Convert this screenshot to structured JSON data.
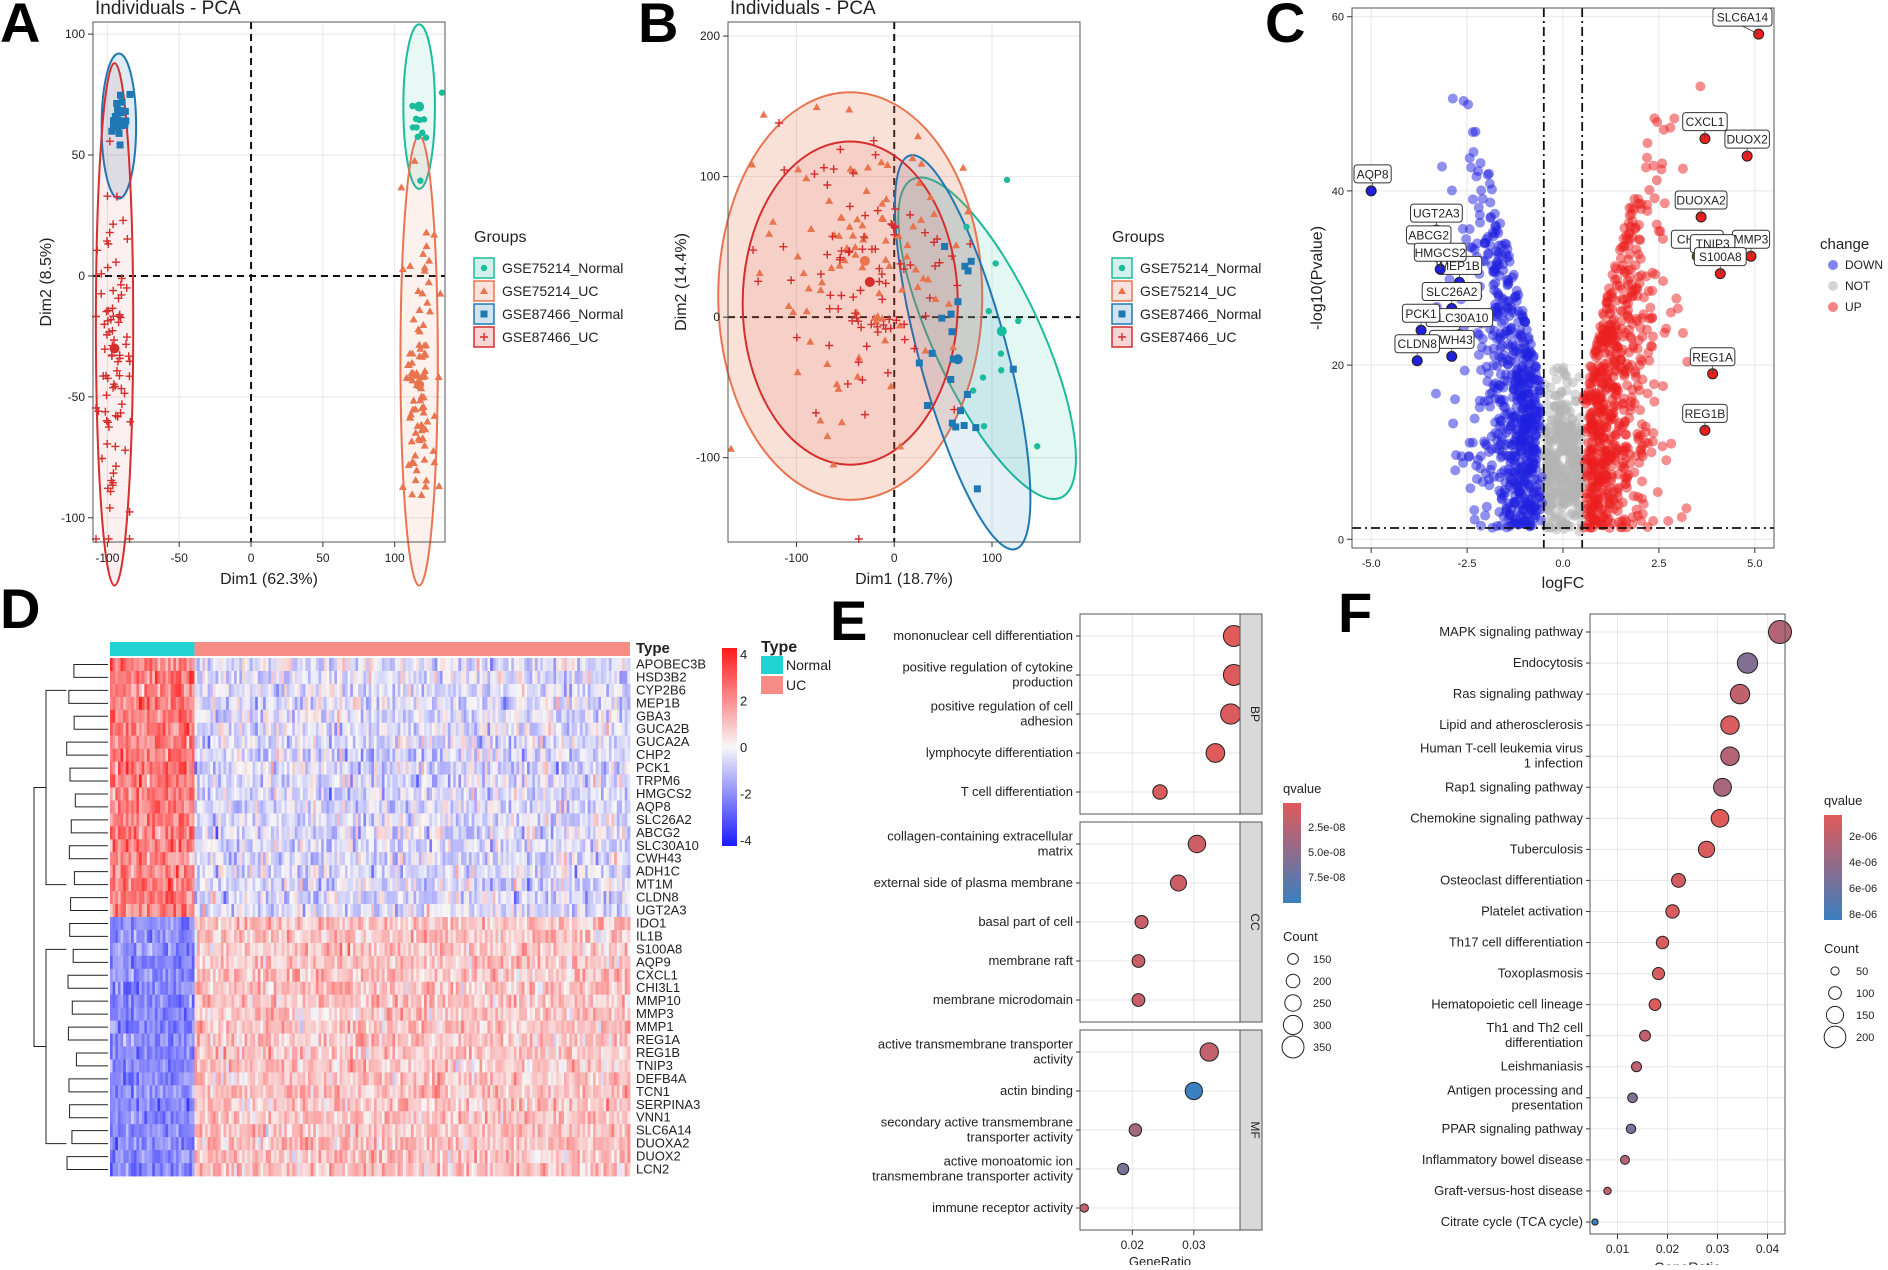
{
  "colors": {
    "normal75": "#1abc9c",
    "uc75": "#e8754f",
    "normal87": "#1f78b4",
    "uc87": "#d62d2d",
    "down": "#1f1fe0",
    "not": "#b3b3b3",
    "up": "#ec1e1e",
    "heat_low": "#1a1aff",
    "heat_mid": "#f7f7f7",
    "heat_high": "#ff1a1a",
    "type_normal": "#22d3d3",
    "type_uc": "#f78c87",
    "q_high": "#e05a5a",
    "q_low": "#3a7fc0"
  },
  "panels": {
    "a": "A",
    "b": "B",
    "c": "C",
    "d": "D",
    "e": "E",
    "f": "F"
  },
  "chart_data": [
    {
      "id": "A",
      "type": "scatter",
      "title": "Individuals - PCA",
      "xlabel": "Dim1 (62.3%)",
      "ylabel": "Dim2 (8.5%)",
      "xlim": [
        -110,
        135
      ],
      "ylim": [
        -110,
        105
      ],
      "xticks": [
        -100,
        -50,
        0,
        50,
        100
      ],
      "yticks": [
        -100,
        -50,
        0,
        50,
        100
      ],
      "legend_title": "Groups",
      "series": [
        {
          "name": "GSE75214_Normal",
          "center": [
            117,
            70
          ],
          "spread": [
            6,
            15
          ],
          "n": 11
        },
        {
          "name": "GSE75214_UC",
          "center": [
            117,
            -45
          ],
          "spread": [
            6,
            28
          ],
          "n": 95
        },
        {
          "name": "GSE87466_Normal",
          "center": [
            -92,
            64
          ],
          "spread": [
            4,
            6
          ],
          "n": 21
        },
        {
          "name": "GSE87466_UC",
          "center": [
            -95,
            -30
          ],
          "spread": [
            6,
            35
          ],
          "n": 87
        }
      ],
      "ellipses": [
        {
          "series": "GSE75214_Normal",
          "cx": 117,
          "cy": 70,
          "rx": 11,
          "ry": 34
        },
        {
          "series": "GSE75214_UC",
          "cx": 117,
          "cy": -35,
          "rx": 13,
          "ry": 93
        },
        {
          "series": "GSE87466_Normal",
          "cx": -92,
          "cy": 62,
          "rx": 12,
          "ry": 30
        },
        {
          "series": "GSE87466_UC",
          "cx": -95,
          "cy": -20,
          "rx": 13,
          "ry": 108
        }
      ]
    },
    {
      "id": "B",
      "type": "scatter",
      "title": "Individuals - PCA",
      "xlabel": "Dim1 (18.7%)",
      "ylabel": "Dim2 (14.4%)",
      "xlim": [
        -170,
        190
      ],
      "ylim": [
        -160,
        210
      ],
      "xticks": [
        -100,
        0,
        100
      ],
      "yticks": [
        -100,
        0,
        100,
        200
      ],
      "legend_title": "Groups",
      "series": [
        {
          "name": "GSE75214_Normal",
          "center": [
            110,
            -10
          ],
          "spread": [
            20,
            35
          ],
          "n": 11
        },
        {
          "name": "GSE75214_UC",
          "center": [
            -30,
            40
          ],
          "spread": [
            55,
            55
          ],
          "n": 95
        },
        {
          "name": "GSE87466_Normal",
          "center": [
            65,
            -30
          ],
          "spread": [
            18,
            40
          ],
          "n": 21
        },
        {
          "name": "GSE87466_UC",
          "center": [
            -25,
            25
          ],
          "spread": [
            50,
            50
          ],
          "n": 87
        }
      ],
      "ellipses": [
        {
          "series": "GSE75214_Normal",
          "cx": 95,
          "cy": -15,
          "rx": 55,
          "ry": 125,
          "rot": 25
        },
        {
          "series": "GSE75214_UC",
          "cx": -45,
          "cy": 15,
          "rx": 135,
          "ry": 145,
          "rot": 0
        },
        {
          "series": "GSE87466_Normal",
          "cx": 70,
          "cy": -25,
          "rx": 45,
          "ry": 145,
          "rot": 15
        },
        {
          "series": "GSE87466_UC",
          "cx": -45,
          "cy": 10,
          "rx": 110,
          "ry": 115,
          "rot": 0
        }
      ]
    },
    {
      "id": "C",
      "type": "scatter",
      "xlabel": "logFC",
      "ylabel": "-log10(Pvalue)",
      "xlim": [
        -5.5,
        5.5
      ],
      "ylim": [
        -1,
        61
      ],
      "xticks": [
        "-5.0",
        "-2.5",
        "0.0",
        "2.5",
        "5.0"
      ],
      "yticks": [
        0,
        20,
        40,
        60
      ],
      "vlines": [
        -0.5,
        0.5
      ],
      "hline": 1.3,
      "legend_title": "change",
      "legend": [
        "DOWN",
        "NOT",
        "UP"
      ],
      "labels": [
        {
          "text": "SLC6A14",
          "x": 5.1,
          "y": 58
        },
        {
          "text": "CXCL1",
          "x": 3.7,
          "y": 46
        },
        {
          "text": "DUOX2",
          "x": 4.8,
          "y": 44
        },
        {
          "text": "DUOXA2",
          "x": 3.6,
          "y": 37
        },
        {
          "text": "MMP3",
          "x": 4.9,
          "y": 32.5
        },
        {
          "text": "CHI3L1",
          "x": 3.5,
          "y": 32.5
        },
        {
          "text": "TNIP3",
          "x": 3.9,
          "y": 32
        },
        {
          "text": "S100A8",
          "x": 4.1,
          "y": 30.5
        },
        {
          "text": "REG1A",
          "x": 3.9,
          "y": 19
        },
        {
          "text": "REG1B",
          "x": 3.7,
          "y": 12.5
        },
        {
          "text": "AQP8",
          "x": -5.0,
          "y": 40
        },
        {
          "text": "UGT2A3",
          "x": -3.3,
          "y": 35.5
        },
        {
          "text": "ABCG2",
          "x": -3.5,
          "y": 33
        },
        {
          "text": "MEP1B",
          "x": -2.7,
          "y": 29.5
        },
        {
          "text": "HMGCS2",
          "x": -3.2,
          "y": 31
        },
        {
          "text": "SLC26A2",
          "x": -2.9,
          "y": 26.5
        },
        {
          "text": "SLC30A10",
          "x": -2.7,
          "y": 23.5
        },
        {
          "text": "PCK1",
          "x": -3.7,
          "y": 24
        },
        {
          "text": "CWH43",
          "x": -2.9,
          "y": 21
        },
        {
          "text": "CLDN8",
          "x": -3.8,
          "y": 20.5
        }
      ]
    },
    {
      "id": "D",
      "type": "heatmap",
      "genes": [
        "APOBEC3B",
        "HSD3B2",
        "CYP2B6",
        "MEP1B",
        "GBA3",
        "GUCA2B",
        "GUCA2A",
        "CHP2",
        "PCK1",
        "TRPM6",
        "HMGCS2",
        "AQP8",
        "SLC26A2",
        "ABCG2",
        "SLC30A10",
        "CWH43",
        "ADH1C",
        "MT1M",
        "CLDN8",
        "UGT2A3",
        "IDO1",
        "IL1B",
        "S100A8",
        "AQP9",
        "CXCL1",
        "CHI3L1",
        "MMP10",
        "MMP3",
        "MMP1",
        "REG1A",
        "REG1B",
        "TNIP3",
        "DEFB4A",
        "TCN1",
        "SERPINA3",
        "VNN1",
        "SLC6A14",
        "DUOXA2",
        "DUOX2",
        "LCN2"
      ],
      "annotation_title": "Type",
      "groups": [
        "Normal",
        "UC"
      ],
      "n_normal": 32,
      "n_uc": 165,
      "legend_ticks": [
        4,
        2,
        0,
        -2,
        -4
      ],
      "legend_title": "Type"
    },
    {
      "id": "E",
      "type": "scatter",
      "xlabel": "GeneRatio",
      "xlim": [
        0.0115,
        0.0375
      ],
      "xticks": [
        "0.02",
        "0.03"
      ],
      "xtick_values": [
        0.02,
        0.03
      ],
      "facets": [
        {
          "name": "BP",
          "terms": [
            {
              "label": [
                "mononuclear cell differentiation"
              ],
              "x": 0.0365,
              "count": 330,
              "q": 2.5e-09
            },
            {
              "label": [
                "positive regulation of cytokine",
                "production"
              ],
              "x": 0.0365,
              "count": 330,
              "q": 4e-09
            },
            {
              "label": [
                "positive regulation of cell",
                "adhesion"
              ],
              "x": 0.036,
              "count": 320,
              "q": 6e-09
            },
            {
              "label": [
                "lymphocyte differentiation"
              ],
              "x": 0.0335,
              "count": 290,
              "q": 3e-09
            },
            {
              "label": [
                "T cell differentiation"
              ],
              "x": 0.0245,
              "count": 215,
              "q": 8e-09
            }
          ]
        },
        {
          "name": "CC",
          "terms": [
            {
              "label": [
                "collagen-containing extracellular",
                "matrix"
              ],
              "x": 0.0305,
              "count": 270,
              "q": 1.2e-08
            },
            {
              "label": [
                "external side of plasma membrane"
              ],
              "x": 0.0275,
              "count": 245,
              "q": 1.2e-08
            },
            {
              "label": [
                "basal part of cell"
              ],
              "x": 0.0215,
              "count": 190,
              "q": 1.5e-08
            },
            {
              "label": [
                "membrane raft"
              ],
              "x": 0.021,
              "count": 185,
              "q": 1.5e-08
            },
            {
              "label": [
                "membrane microdomain"
              ],
              "x": 0.021,
              "count": 185,
              "q": 1.5e-08
            }
          ]
        },
        {
          "name": "MF",
          "terms": [
            {
              "label": [
                "active transmembrane transporter",
                "activity"
              ],
              "x": 0.0325,
              "count": 285,
              "q": 1.8e-08
            },
            {
              "label": [
                "actin binding"
              ],
              "x": 0.03,
              "count": 265,
              "q": 9e-08
            },
            {
              "label": [
                "secondary active transmembrane",
                "transporter activity"
              ],
              "x": 0.0205,
              "count": 180,
              "q": 3.5e-08
            },
            {
              "label": [
                "active monoatomic ion",
                "transmembrane transporter activity"
              ],
              "x": 0.0185,
              "count": 160,
              "q": 5.5e-08
            },
            {
              "label": [
                "immune receptor activity"
              ],
              "x": 0.0122,
              "count": 105,
              "q": 2e-08
            }
          ]
        }
      ],
      "color_title": "qvalue",
      "color_ticks": [
        "2.5e-08",
        "5.0e-08",
        "7.5e-08"
      ],
      "size_title": "Count",
      "size_ticks": [
        150,
        200,
        250,
        300,
        350
      ]
    },
    {
      "id": "F",
      "type": "scatter",
      "xlabel": "GeneRatio",
      "xlim": [
        0.0045,
        0.0435
      ],
      "xticks": [
        "0.01",
        "0.02",
        "0.03",
        "0.04"
      ],
      "xtick_values": [
        0.01,
        0.02,
        0.03,
        0.04
      ],
      "terms": [
        {
          "label": [
            "MAPK signaling pathway"
          ],
          "x": 0.0425,
          "count": 215,
          "q": 3e-06
        },
        {
          "label": [
            "Endocytosis"
          ],
          "x": 0.036,
          "count": 185,
          "q": 5e-06
        },
        {
          "label": [
            "Ras signaling pathway"
          ],
          "x": 0.0345,
          "count": 175,
          "q": 2.5e-06
        },
        {
          "label": [
            "Lipid and atherosclerosis"
          ],
          "x": 0.0325,
          "count": 165,
          "q": 1.5e-06
        },
        {
          "label": [
            "Human T-cell leukemia virus",
            "1 infection"
          ],
          "x": 0.0325,
          "count": 165,
          "q": 3e-06
        },
        {
          "label": [
            "Rap1 signaling pathway"
          ],
          "x": 0.031,
          "count": 158,
          "q": 3.5e-06
        },
        {
          "label": [
            "Chemokine signaling pathway"
          ],
          "x": 0.0305,
          "count": 155,
          "q": 1.2e-06
        },
        {
          "label": [
            "Tuberculosis"
          ],
          "x": 0.0278,
          "count": 140,
          "q": 1.5e-06
        },
        {
          "label": [
            "Osteoclast differentiation"
          ],
          "x": 0.0222,
          "count": 113,
          "q": 1.8e-06
        },
        {
          "label": [
            "Platelet activation"
          ],
          "x": 0.021,
          "count": 107,
          "q": 1.5e-06
        },
        {
          "label": [
            "Th17 cell differentiation"
          ],
          "x": 0.019,
          "count": 97,
          "q": 1.5e-06
        },
        {
          "label": [
            "Toxoplasmosis"
          ],
          "x": 0.0182,
          "count": 93,
          "q": 1.5e-06
        },
        {
          "label": [
            "Hematopoietic cell lineage"
          ],
          "x": 0.0175,
          "count": 89,
          "q": 1.2e-06
        },
        {
          "label": [
            "Th1 and Th2 cell",
            "differentiation"
          ],
          "x": 0.0155,
          "count": 80,
          "q": 2.5e-06
        },
        {
          "label": [
            "Leishmaniasis"
          ],
          "x": 0.0138,
          "count": 70,
          "q": 2.5e-06
        },
        {
          "label": [
            "Antigen processing and",
            "presentation"
          ],
          "x": 0.013,
          "count": 66,
          "q": 5e-06
        },
        {
          "label": [
            "PPAR signaling pathway"
          ],
          "x": 0.0127,
          "count": 64,
          "q": 5.5e-06
        },
        {
          "label": [
            "Inflammatory bowel disease"
          ],
          "x": 0.0115,
          "count": 58,
          "q": 3e-06
        },
        {
          "label": [
            "Graft-versus-host disease"
          ],
          "x": 0.008,
          "count": 41,
          "q": 2.5e-06
        },
        {
          "label": [
            "Citrate cycle (TCA cycle)"
          ],
          "x": 0.0055,
          "count": 28,
          "q": 8e-06
        }
      ],
      "color_title": "qvalue",
      "color_ticks": [
        "2e-06",
        "4e-06",
        "6e-06",
        "8e-06"
      ],
      "size_title": "Count",
      "size_ticks": [
        50,
        100,
        150,
        200
      ]
    }
  ]
}
